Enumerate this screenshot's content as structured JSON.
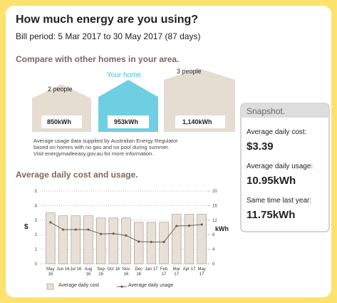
{
  "header": {
    "title": "How much energy are you using?",
    "bill_period": "Bill period: 5 Mar 2017 to 30 May 2017 (87 days)"
  },
  "comparison": {
    "heading": "Compare with other homes in your area.",
    "homes": [
      {
        "label": "2 people",
        "usage": "850kWh"
      },
      {
        "label": "Your home",
        "usage": "953kWh"
      },
      {
        "label": "3 people",
        "usage": "1,140kWh"
      }
    ],
    "note": [
      "Average usage data supplied by Australian Energy Regulator",
      "based on homes with no gas and no pool during summer.",
      "Visit energymadeeasy.gov.au for more information."
    ]
  },
  "snapshot": {
    "title": "Snapshot.",
    "items": [
      {
        "label": "Average daily cost:",
        "value": "$3.39"
      },
      {
        "label": "Average daily usage:",
        "value": "10.95kWh"
      },
      {
        "label": "Same time last year:",
        "value": "11.75kWh"
      }
    ]
  },
  "chart_data": {
    "type": "bar",
    "title": "Average daily cost and usage.",
    "categories": [
      "May 16",
      "Jun 16",
      "Jul 16",
      "Aug 16",
      "Sep 16",
      "Oct 16",
      "Nov 16",
      "Dec 16",
      "Jan 17",
      "Feb 17",
      "Mar 17",
      "Apr 17",
      "May 17"
    ],
    "series": [
      {
        "name": "Average daily cost",
        "color": "#e8e0d6",
        "values": [
          3.5,
          3.3,
          3.3,
          3.3,
          3.15,
          3.15,
          3.15,
          2.85,
          2.85,
          2.85,
          3.4,
          3.4,
          3.4
        ]
      },
      {
        "name": "Average daily usage",
        "color": "#6b5d52",
        "axis": "y2",
        "values": [
          11.4,
          9.4,
          9.4,
          9.4,
          8.2,
          8.3,
          7.8,
          6.1,
          6.0,
          6.0,
          10.4,
          10.5,
          10.8
        ]
      }
    ],
    "ylabel": "$",
    "y2label": "kWh",
    "ylim": [
      0,
      5
    ],
    "yticks": [
      0,
      1,
      2,
      3,
      4,
      5
    ],
    "y2lim": [
      0,
      20
    ],
    "y2ticks": [
      0,
      4,
      8,
      12,
      16,
      20
    ],
    "grid": true
  }
}
